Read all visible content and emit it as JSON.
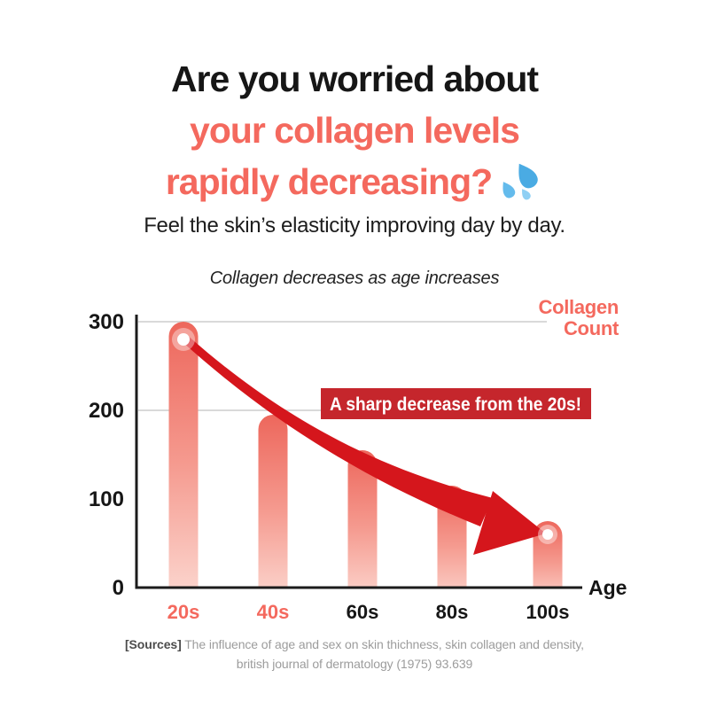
{
  "header": {
    "title_line1": "Are you worried about",
    "title_line2": "your collagen levels",
    "title_line3": "rapidly decreasing?",
    "title_emoji": "sweat-droplets",
    "subtitle": "Feel the skin’s elasticity improving day by day."
  },
  "chart_data": {
    "type": "bar",
    "title": "Collagen decreases as age increases",
    "categories": [
      "20s",
      "40s",
      "60s",
      "80s",
      "100s"
    ],
    "values": [
      300,
      195,
      155,
      115,
      75
    ],
    "highlighted_categories": [
      "20s",
      "40s"
    ],
    "y_ticks": [
      0,
      100,
      200,
      300
    ],
    "ylim": [
      0,
      300
    ],
    "xlabel": "Age",
    "series_label_lines": [
      "Collagen",
      "Count"
    ],
    "annotation": "A sharp decrease from the 20s!",
    "trend": {
      "start": {
        "category": "20s",
        "value": 280
      },
      "end": {
        "category": "100s",
        "value": 60
      }
    },
    "grid": "leader lines at y=200 and y=300 only",
    "legend_position": "top-right",
    "colors": {
      "coral_accent": "#F4695E",
      "bar_top": "#ED675C",
      "bar_bottom": "#FCDAD3",
      "badge_red": "#C5262C",
      "arrow_red": "#D5161C",
      "leader_line": "#D9D9D9",
      "axis": "#1b1b1b",
      "tick_label": "#161616"
    }
  },
  "footer": {
    "sources_label": "[Sources]",
    "sources_line1": "The influence of age and sex on skin thichness, skin collagen and density,",
    "sources_line2": "british journal of dermatology (1975) 93.639"
  }
}
